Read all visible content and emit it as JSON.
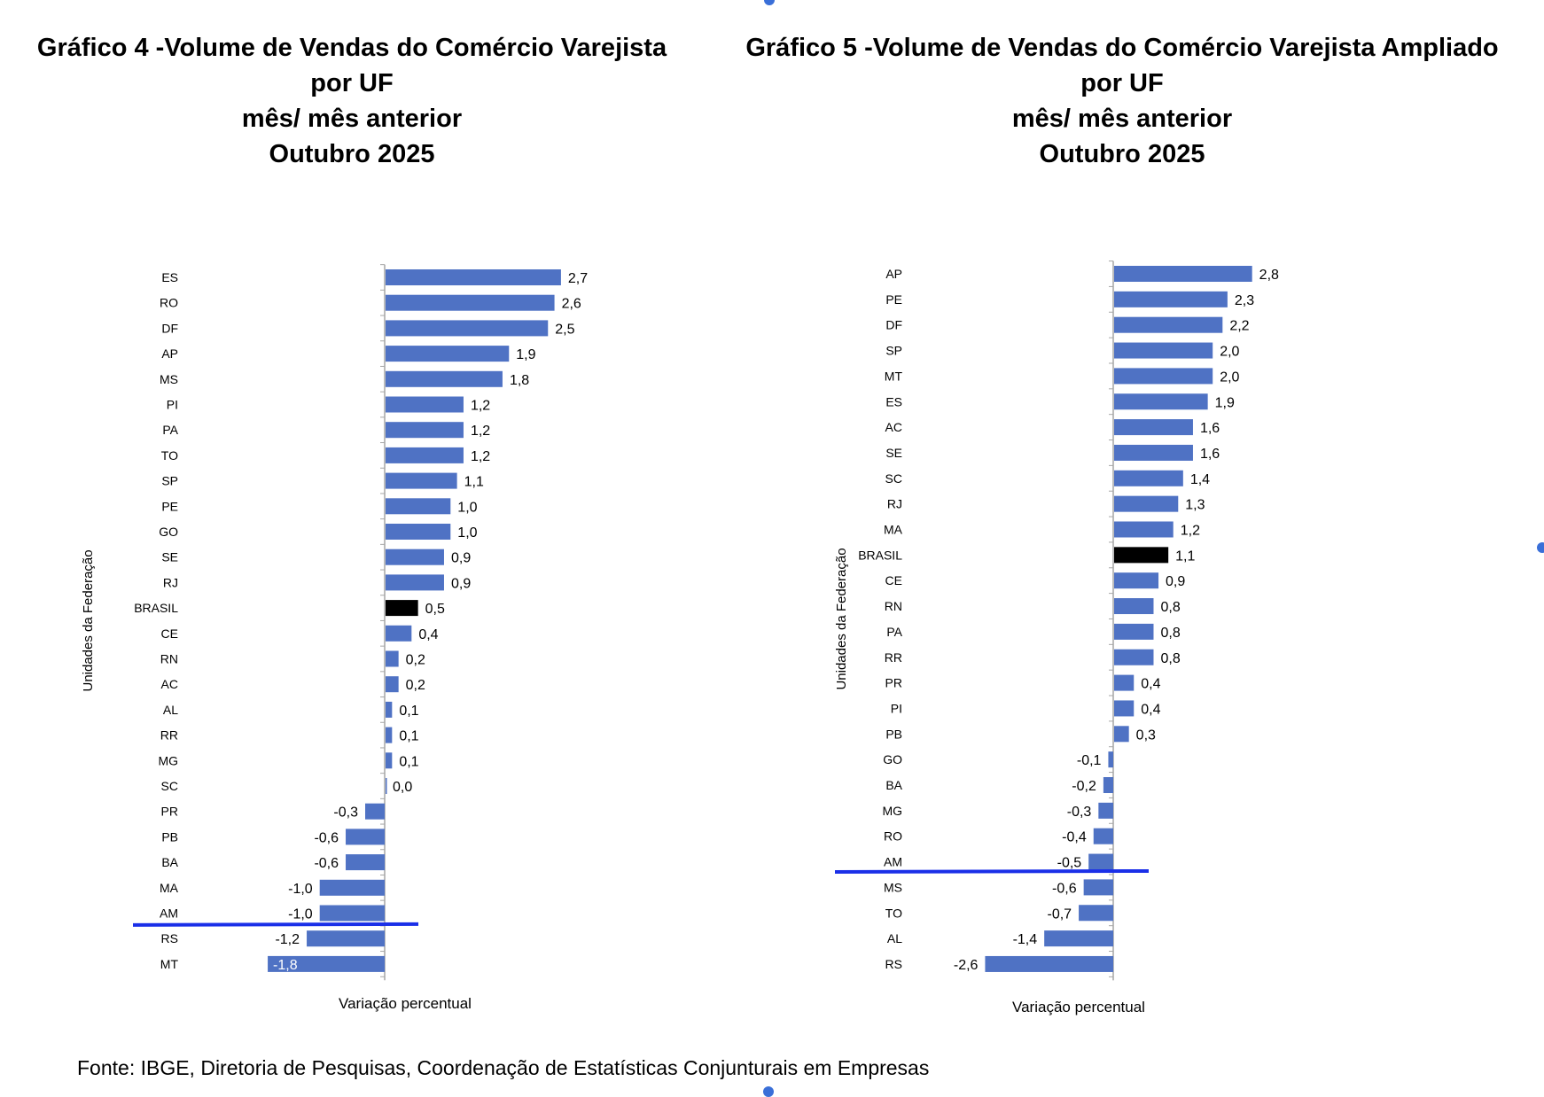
{
  "charts_meta": {
    "bar_color": "#4f72c4",
    "highlight_color": "#000000",
    "marker_line_color": "#1a2fe8"
  },
  "chart_data": [
    {
      "type": "bar",
      "orientation": "horizontal",
      "title_lines": [
        "Gráfico 4 -Volume de Vendas do Comércio Varejista",
        "por UF",
        "mês/ mês anterior",
        "Outubro 2025"
      ],
      "xlabel": "Variação percentual",
      "ylabel": "Unidades da Federação",
      "categories": [
        "ES",
        "RO",
        "DF",
        "AP",
        "MS",
        "PI",
        "PA",
        "TO",
        "SP",
        "PE",
        "GO",
        "SE",
        "RJ",
        "BRASIL",
        "CE",
        "RN",
        "AC",
        "AL",
        "RR",
        "MG",
        "SC",
        "PR",
        "PB",
        "BA",
        "MA",
        "AM",
        "RS",
        "MT"
      ],
      "values": [
        2.7,
        2.6,
        2.5,
        1.9,
        1.8,
        1.2,
        1.2,
        1.2,
        1.1,
        1.0,
        1.0,
        0.9,
        0.9,
        0.5,
        0.4,
        0.2,
        0.2,
        0.1,
        0.1,
        0.1,
        0.0,
        -0.3,
        -0.6,
        -0.6,
        -1.0,
        -1.0,
        -1.2,
        -1.8
      ],
      "data_labels": [
        "2,7",
        "2,6",
        "2,5",
        "1,9",
        "1,8",
        "1,2",
        "1,2",
        "1,2",
        "1,1",
        "1,0",
        "1,0",
        "0,9",
        "0,9",
        "0,5",
        "0,4",
        "0,2",
        "0,2",
        "0,1",
        "0,1",
        "0,1",
        "0,0",
        "-0,3",
        "-0,6",
        "-0,6",
        "-1,0",
        "-1,0",
        "-1,2",
        "-1,8"
      ],
      "highlight": "BRASIL",
      "marker_line_after": "AM",
      "grid": false
    },
    {
      "type": "bar",
      "orientation": "horizontal",
      "title_lines": [
        "Gráfico 5 -Volume de Vendas do Comércio Varejista Ampliado",
        "por UF",
        "mês/ mês anterior",
        "Outubro 2025"
      ],
      "xlabel": "Variação percentual",
      "ylabel": "Unidades da Federação",
      "categories": [
        "AP",
        "PE",
        "DF",
        "SP",
        "MT",
        "ES",
        "AC",
        "SE",
        "SC",
        "RJ",
        "MA",
        "BRASIL",
        "CE",
        "RN",
        "PA",
        "RR",
        "PR",
        "PI",
        "PB",
        "GO",
        "BA",
        "MG",
        "RO",
        "AM",
        "MS",
        "TO",
        "AL",
        "RS"
      ],
      "values": [
        2.8,
        2.3,
        2.2,
        2.0,
        2.0,
        1.9,
        1.6,
        1.6,
        1.4,
        1.3,
        1.2,
        1.1,
        0.9,
        0.8,
        0.8,
        0.8,
        0.4,
        0.4,
        0.3,
        -0.1,
        -0.2,
        -0.3,
        -0.4,
        -0.5,
        -0.6,
        -0.7,
        -1.4,
        -2.6
      ],
      "data_labels": [
        "2,8",
        "2,3",
        "2,2",
        "2,0",
        "2,0",
        "1,9",
        "1,6",
        "1,6",
        "1,4",
        "1,3",
        "1,2",
        "1,1",
        "0,9",
        "0,8",
        "0,8",
        "0,8",
        "0,4",
        "0,4",
        "0,3",
        "-0,1",
        "-0,2",
        "-0,3",
        "-0,4",
        "-0,5",
        "-0,6",
        "-0,7",
        "-1,4",
        "-2,6"
      ],
      "highlight": "BRASIL",
      "marker_line_after": "AM",
      "grid": false
    }
  ],
  "footer": {
    "source": "Fonte: IBGE, Diretoria de Pesquisas, Coordenação de Estatísticas Conjunturais em Empresas"
  }
}
